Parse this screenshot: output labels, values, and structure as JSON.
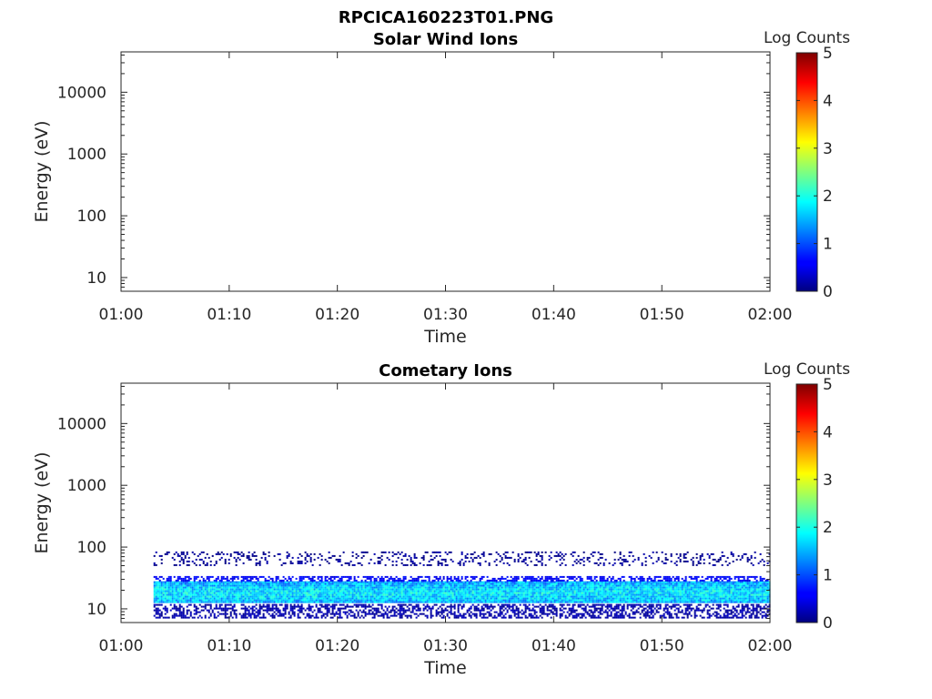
{
  "figure_title": "RPCICA160223T01.PNG",
  "chart_data": [
    {
      "type": "heatmap",
      "title": "Solar Wind Ions",
      "xlabel": "Time",
      "ylabel": "Energy (eV)",
      "y_scale": "log",
      "ylim": [
        6,
        45000
      ],
      "xlim": [
        "01:00",
        "02:00"
      ],
      "x_ticks": [
        "01:00",
        "01:10",
        "01:20",
        "01:30",
        "01:40",
        "01:50",
        "02:00"
      ],
      "y_ticks": [
        10,
        100,
        1000,
        10000
      ],
      "y_tick_labels": [
        "10",
        "100",
        "1000",
        "10000"
      ],
      "colorbar": {
        "label": "Log Counts",
        "range": [
          0,
          5
        ],
        "ticks": [
          "0",
          "1",
          "2",
          "3",
          "4",
          "5"
        ],
        "colormap": "jet"
      },
      "data": "empty"
    },
    {
      "type": "heatmap",
      "title": "Cometary Ions",
      "xlabel": "Time",
      "ylabel": "Energy (eV)",
      "y_scale": "log",
      "ylim": [
        6,
        45000
      ],
      "xlim": [
        "01:00",
        "02:00"
      ],
      "x_ticks": [
        "01:00",
        "01:10",
        "01:20",
        "01:30",
        "01:40",
        "01:50",
        "02:00"
      ],
      "y_ticks": [
        10,
        100,
        1000,
        10000
      ],
      "y_tick_labels": [
        "10",
        "100",
        "1000",
        "10000"
      ],
      "colorbar": {
        "label": "Log Counts",
        "range": [
          0,
          5
        ],
        "ticks": [
          "0",
          "1",
          "2",
          "3",
          "4",
          "5"
        ],
        "colormap": "jet"
      },
      "data_time_range": [
        "01:03",
        "02:00"
      ],
      "bands": [
        {
          "energy_range_eV": [
            7,
            12
          ],
          "log_counts": 0.2,
          "coverage": "dense"
        },
        {
          "energy_range_eV": [
            12,
            28
          ],
          "log_counts": 1.4,
          "coverage": "continuous"
        },
        {
          "energy_range_eV": [
            28,
            34
          ],
          "log_counts": 0.6,
          "coverage": "dense"
        },
        {
          "energy_range_eV": [
            50,
            85
          ],
          "log_counts": 0.1,
          "coverage": "sparse"
        }
      ]
    }
  ]
}
